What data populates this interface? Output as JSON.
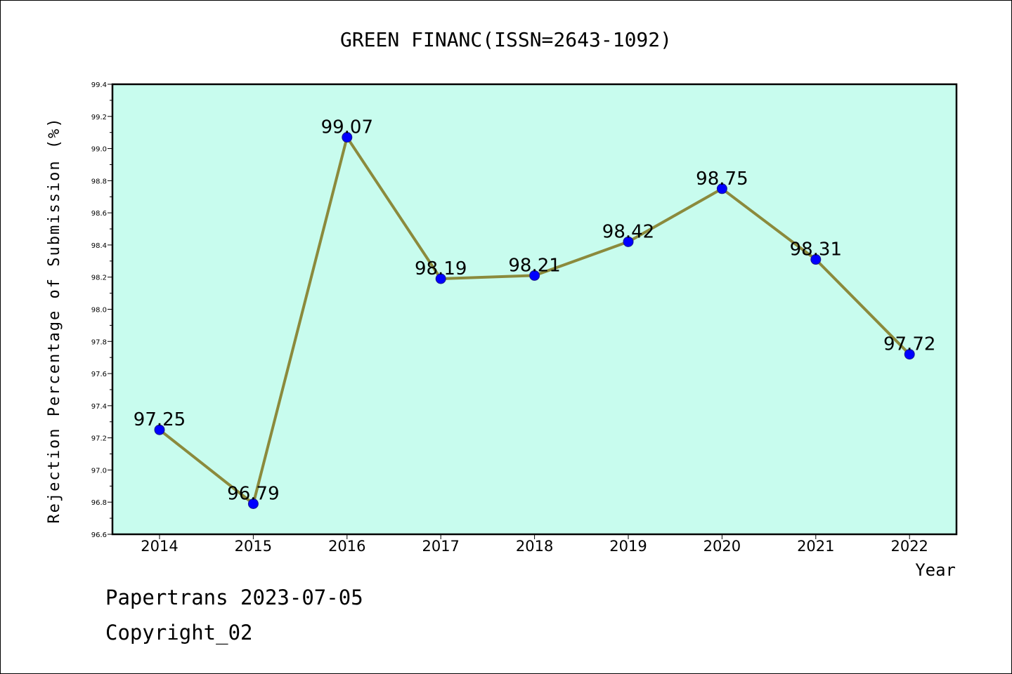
{
  "chart_data": {
    "type": "line",
    "title": "GREEN FINANC(ISSN=2643-1092)",
    "xlabel": "Year",
    "ylabel": "Rejection Percentage of Submission (%)",
    "categories": [
      "2014",
      "2015",
      "2016",
      "2017",
      "2018",
      "2019",
      "2020",
      "2021",
      "2022"
    ],
    "series": [
      {
        "values": [
          97.25,
          96.79,
          99.07,
          98.19,
          98.21,
          98.42,
          98.75,
          98.31,
          97.72
        ]
      }
    ],
    "data_labels": [
      "97.25",
      "96.79",
      "99.07",
      "98.19",
      "98.21",
      "98.42",
      "98.75",
      "98.31",
      "97.72"
    ],
    "ylim": [
      96.6,
      99.4
    ],
    "y_ticks": [
      "96.6",
      "96.8",
      "97.0",
      "97.2",
      "97.4",
      "97.6",
      "97.8",
      "98.0",
      "98.2",
      "98.4",
      "98.6",
      "98.8",
      "99.0",
      "99.2",
      "99.4"
    ],
    "grid": false,
    "legend": "none",
    "colors": {
      "plot_background": "#c8fcee",
      "line": "#8b8a3c",
      "marker": "#0000ff",
      "frame": "#000000"
    }
  },
  "footer": {
    "line1": "Papertrans 2023-07-05",
    "line2": "Copyright_02"
  }
}
